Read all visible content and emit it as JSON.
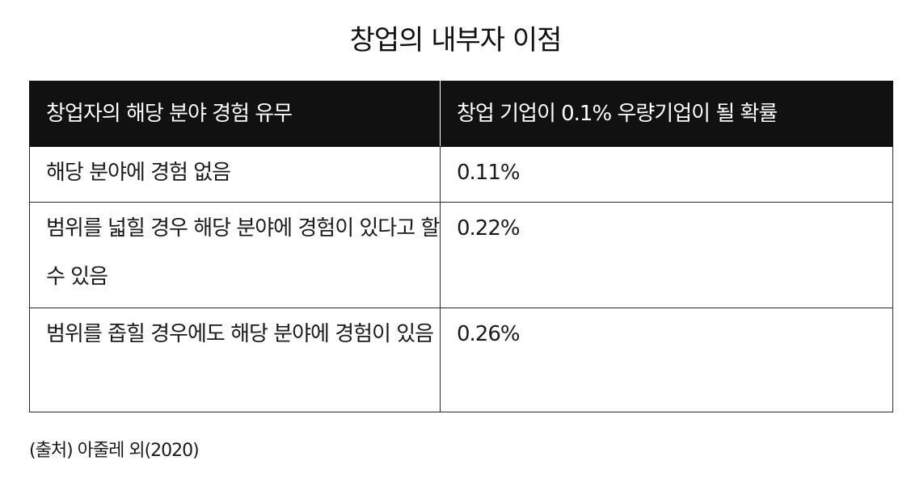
{
  "title": "창업의 내부자 이점",
  "table": {
    "headers": [
      "창업자의 해당 분야 경험 유무",
      "창업 기업이 0.1% 우량기업이 될 확률"
    ],
    "rows": [
      {
        "condition": "해당 분야에 경험 없음",
        "probability": "0.11%"
      },
      {
        "condition": "범위를 넓힐 경우 해당 분야에 경험이 있다고 할 수 있음",
        "probability": "0.22%"
      },
      {
        "condition": "범위를 좁힐 경우에도 해당 분야에 경험이 있음",
        "probability": "0.26%"
      }
    ]
  },
  "source": "(출처) 아줄레 외(2020)"
}
